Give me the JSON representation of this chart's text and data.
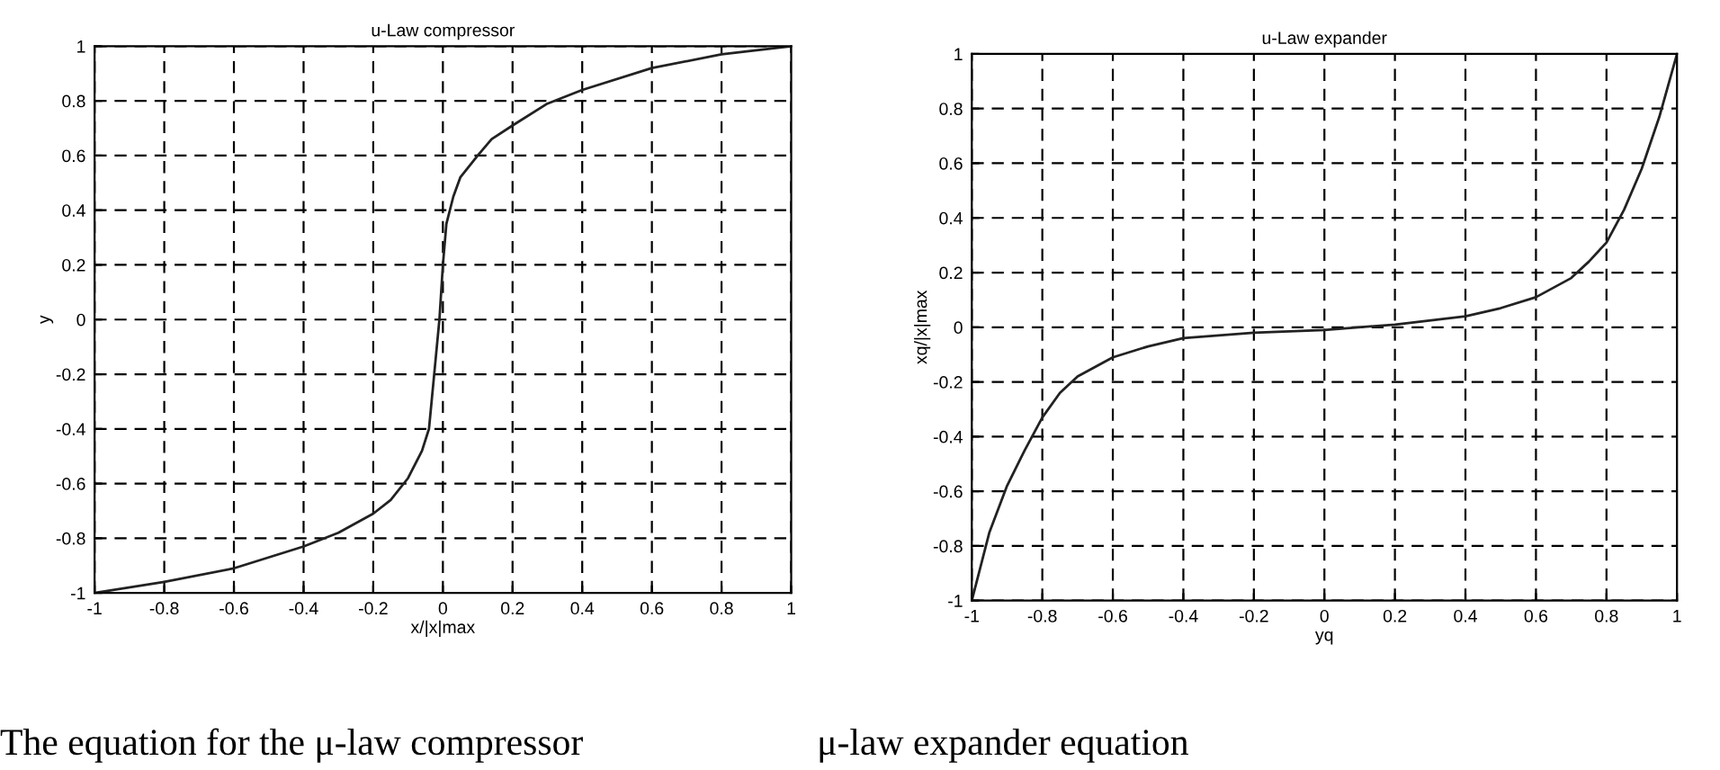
{
  "chart_data": [
    {
      "type": "line",
      "title": "u-Law compressor",
      "xlabel": "x/|x|max",
      "ylabel": "y",
      "xlim": [
        -1,
        1
      ],
      "ylim": [
        -1,
        1
      ],
      "xticks": [
        -1,
        -0.8,
        -0.6,
        -0.4,
        -0.2,
        0,
        0.2,
        0.4,
        0.6,
        0.8,
        1
      ],
      "yticks": [
        -1,
        -0.8,
        -0.6,
        -0.4,
        -0.2,
        0,
        0.2,
        0.4,
        0.6,
        0.8,
        1
      ],
      "grid": true,
      "line_style": "solid",
      "annotations": [
        "The equation for the μ-law compressor"
      ],
      "series": [
        {
          "color": "#222222",
          "x": [
            -1,
            -0.8,
            -0.6,
            -0.4,
            -0.3,
            -0.2,
            -0.15,
            -0.1,
            -0.06,
            -0.04,
            -0.025,
            -0.01,
            0,
            0.01,
            0.03,
            0.05,
            0.1,
            0.14,
            0.2,
            0.3,
            0.4,
            0.6,
            0.8,
            1
          ],
          "values": [
            -1,
            -0.96,
            -0.91,
            -0.83,
            -0.78,
            -0.71,
            -0.66,
            -0.58,
            -0.48,
            -0.4,
            -0.2,
            0,
            0.2,
            0.35,
            0.45,
            0.52,
            0.6,
            0.66,
            0.71,
            0.79,
            0.84,
            0.92,
            0.97,
            1
          ]
        }
      ]
    },
    {
      "type": "line",
      "title": "u-Law expander",
      "xlabel": "yq",
      "ylabel": "xq/|x|max",
      "xlim": [
        -1,
        1
      ],
      "ylim": [
        -1,
        1
      ],
      "xticks": [
        -1,
        -0.8,
        -0.6,
        -0.4,
        -0.2,
        0,
        0.2,
        0.4,
        0.6,
        0.8,
        1
      ],
      "yticks": [
        -1,
        -0.8,
        -0.6,
        -0.4,
        -0.2,
        0,
        0.2,
        0.4,
        0.6,
        0.8,
        1
      ],
      "grid": true,
      "line_style": "solid",
      "annotations": [
        "μ-law expander equation"
      ],
      "series": [
        {
          "color": "#222222",
          "x": [
            -1,
            -0.95,
            -0.9,
            -0.85,
            -0.8,
            -0.75,
            -0.7,
            -0.6,
            -0.5,
            -0.4,
            -0.2,
            0,
            0.2,
            0.4,
            0.5,
            0.6,
            0.7,
            0.75,
            0.8,
            0.85,
            0.9,
            0.95,
            1
          ],
          "values": [
            -1,
            -0.75,
            -0.58,
            -0.45,
            -0.33,
            -0.24,
            -0.18,
            -0.11,
            -0.07,
            -0.04,
            -0.02,
            -0.01,
            0.01,
            0.04,
            0.07,
            0.11,
            0.18,
            0.24,
            0.31,
            0.43,
            0.58,
            0.77,
            1
          ]
        }
      ]
    }
  ]
}
